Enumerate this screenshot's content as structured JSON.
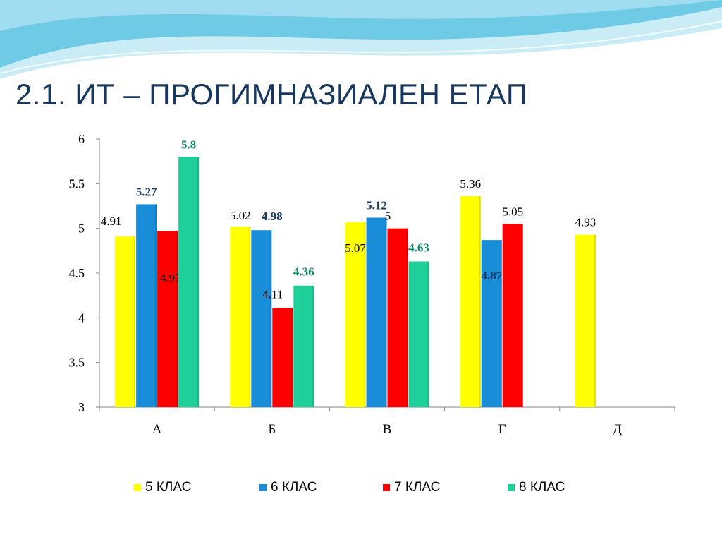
{
  "slide": {
    "title": "2.1. ИТ – ПРОГИМНАЗИАЛЕН ЕТАП"
  },
  "colors": {
    "title": "#17375e",
    "wave_dark": "#5cc3e0",
    "wave_light": "#b7e4f2"
  },
  "chart_data": {
    "type": "bar",
    "categories": [
      "А",
      "Б",
      "В",
      "Г",
      "Д"
    ],
    "ylim": [
      3,
      6
    ],
    "yticks": [
      "3",
      "3.5",
      "4",
      "4.5",
      "5",
      "5.5",
      "6"
    ],
    "grid": false,
    "legend_position": "bottom",
    "series": [
      {
        "name": "5 КЛАС",
        "color": "#ffff00",
        "values": [
          4.91,
          5.02,
          5.07,
          5.36,
          4.93
        ],
        "labels": [
          "4.91",
          "5.02",
          "5.07",
          "5.36",
          "4.93"
        ]
      },
      {
        "name": "6 КЛАС",
        "color": "#1a8dd8",
        "values": [
          5.27,
          4.98,
          5.12,
          4.87,
          null
        ],
        "labels": [
          "5.27",
          "4.98",
          "5.12",
          "4.87",
          ""
        ]
      },
      {
        "name": "7 КЛАС",
        "color": "#ff0000",
        "values": [
          4.97,
          4.11,
          5.0,
          5.05,
          null
        ],
        "labels": [
          "4.97",
          "4.11",
          "5",
          "5.05",
          ""
        ]
      },
      {
        "name": "8 КЛАС",
        "color": "#1fcf9a",
        "values": [
          5.8,
          4.36,
          4.63,
          null,
          null
        ],
        "labels": [
          "5.8",
          "4.36",
          "4.63",
          "",
          ""
        ]
      }
    ]
  }
}
